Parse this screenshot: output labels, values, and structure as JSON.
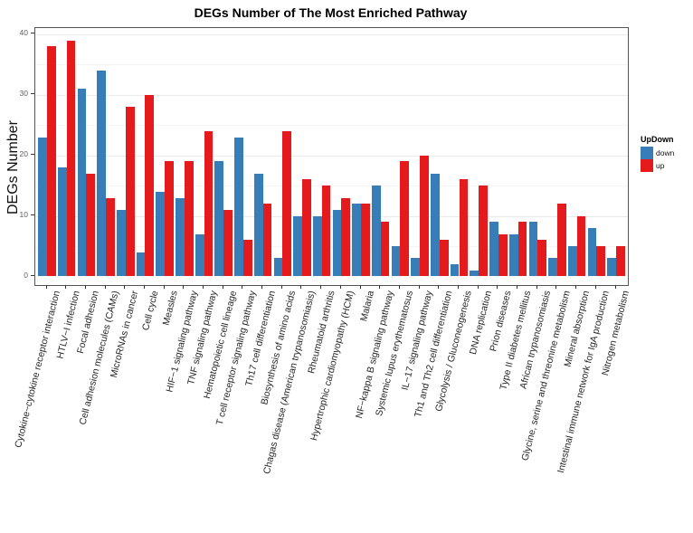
{
  "title": "DEGs Number of The Most Enriched Pathway",
  "y_axis_label": "DEGs Number",
  "legend": {
    "title": "UpDown",
    "items": [
      {
        "label": "down",
        "color": "#377EB8"
      },
      {
        "label": "up",
        "color": "#E41A1C"
      }
    ]
  },
  "colors": {
    "down": "#377EB8",
    "up": "#E41A1C"
  },
  "chart_data": {
    "type": "bar",
    "title": "DEGs Number of The Most Enriched Pathway",
    "xlabel": "",
    "ylabel": "DEGs Number",
    "ylim": [
      0,
      40
    ],
    "yticks": [
      0,
      10,
      20,
      30,
      40
    ],
    "grid": "major and minor horizontal gridlines, very light gray",
    "legend_position": "right",
    "categories": [
      "Cytokine−cytokine receptor interaction",
      "HTLV−I infection",
      "Focal adhesion",
      "Cell adhesion molecules (CAMs)",
      "MicroRNAs in cancer",
      "Cell cycle",
      "Measles",
      "HIF−1 signaling pathway",
      "TNF signaling pathway",
      "Hematopoietic cell lineage",
      "T cell receptor signaling pathway",
      "Th17 cell differentiation",
      "Biosynthesis of amino acids",
      "Chagas disease (American trypanosomiasis)",
      "Rheumatoid arthritis",
      "Hypertrophic cardiomyopathy (HCM)",
      "Malaria",
      "NF−kappa B signaling pathway",
      "Systemic lupus erythematosus",
      "IL−17 signaling pathway",
      "Th1 and Th2 cell differentiation",
      "Glycolysis / Gluconeogenesis",
      "DNA replication",
      "Prion diseases",
      "Type II diabetes mellitus",
      "African trypanosomiasis",
      "Glycine, serine and threonine metabolism",
      "Mineral absorption",
      "Intestinal immune network for IgA production",
      "Nitrogen metabolism"
    ],
    "series": [
      {
        "name": "down",
        "color": "#377EB8",
        "values": [
          23,
          18,
          31,
          34,
          11,
          4,
          14,
          13,
          7,
          19,
          23,
          17,
          3,
          10,
          10,
          11,
          12,
          15,
          5,
          3,
          17,
          2,
          1,
          9,
          7,
          9,
          3,
          5,
          8,
          3
        ]
      },
      {
        "name": "up",
        "color": "#E41A1C",
        "values": [
          38,
          39,
          17,
          13,
          28,
          30,
          19,
          19,
          24,
          11,
          6,
          12,
          24,
          16,
          15,
          13,
          12,
          9,
          19,
          20,
          6,
          16,
          15,
          7,
          9,
          6,
          12,
          10,
          5,
          5
        ]
      }
    ]
  }
}
